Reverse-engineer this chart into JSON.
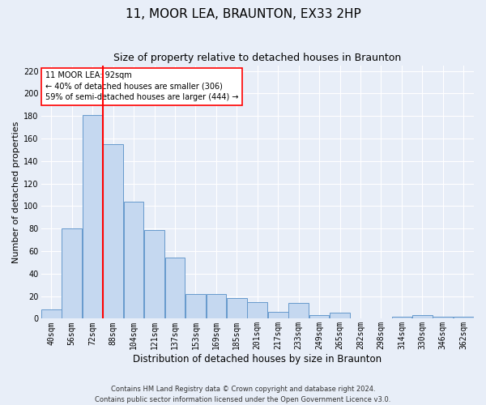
{
  "title": "11, MOOR LEA, BRAUNTON, EX33 2HP",
  "subtitle": "Size of property relative to detached houses in Braunton",
  "xlabel": "Distribution of detached houses by size in Braunton",
  "ylabel": "Number of detached properties",
  "footnote": "Contains HM Land Registry data © Crown copyright and database right 2024.\nContains public sector information licensed under the Open Government Licence v3.0.",
  "categories": [
    "40sqm",
    "56sqm",
    "72sqm",
    "88sqm",
    "104sqm",
    "121sqm",
    "137sqm",
    "153sqm",
    "169sqm",
    "185sqm",
    "201sqm",
    "217sqm",
    "233sqm",
    "249sqm",
    "265sqm",
    "282sqm",
    "298sqm",
    "314sqm",
    "330sqm",
    "346sqm",
    "362sqm"
  ],
  "values": [
    8,
    80,
    181,
    155,
    104,
    79,
    54,
    22,
    22,
    18,
    15,
    6,
    14,
    3,
    5,
    0,
    0,
    2,
    3,
    2,
    2
  ],
  "bar_color": "#c5d8f0",
  "bar_edge_color": "#6699cc",
  "vline_x_index": 2.5,
  "vline_color": "red",
  "annotation_line1": "11 MOOR LEA: 92sqm",
  "annotation_line2": "← 40% of detached houses are smaller (306)",
  "annotation_line3": "59% of semi-detached houses are larger (444) →",
  "annotation_box_color": "white",
  "annotation_box_edgecolor": "red",
  "ylim": [
    0,
    225
  ],
  "yticks": [
    0,
    20,
    40,
    60,
    80,
    100,
    120,
    140,
    160,
    180,
    200,
    220
  ],
  "title_fontsize": 11,
  "subtitle_fontsize": 9,
  "ylabel_fontsize": 8,
  "xlabel_fontsize": 8.5,
  "tick_fontsize": 7,
  "footnote_fontsize": 6,
  "annotation_fontsize": 7,
  "bar_width": 0.97,
  "background_color": "#e8eef8",
  "grid_color": "#ffffff"
}
